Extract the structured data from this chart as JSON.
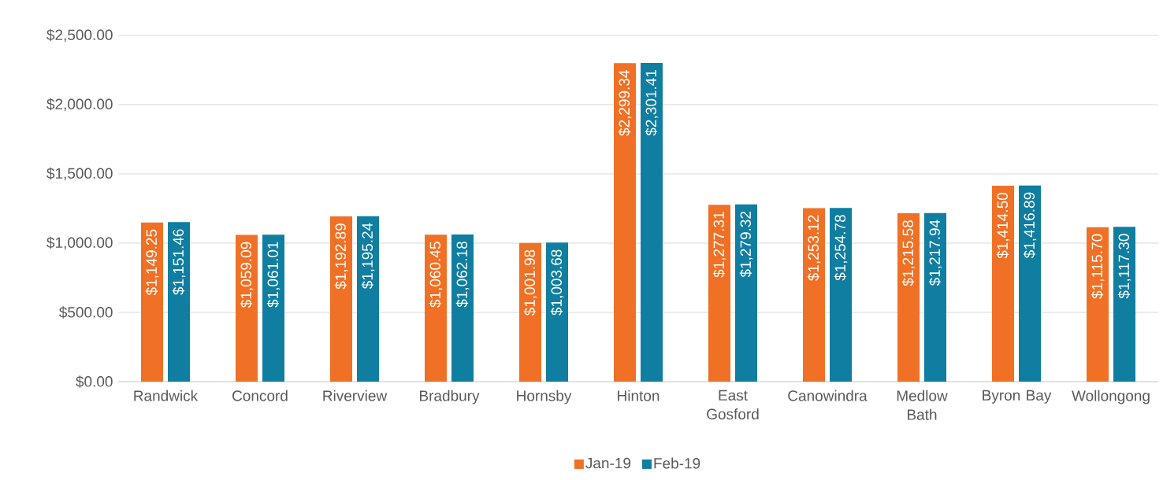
{
  "chart_data": {
    "type": "bar",
    "categories": [
      "Randwick",
      "Concord",
      "Riverview",
      "Bradbury",
      "Hornsby",
      "Hinton",
      "East Gosford",
      "Canowindra",
      "Medlow Bath",
      "Byron Bay",
      "Wollongong"
    ],
    "series": [
      {
        "name": "Jan-19",
        "color": "#f07125",
        "values": [
          1149.25,
          1059.09,
          1192.89,
          1060.45,
          1001.98,
          2299.34,
          1277.31,
          1253.12,
          1215.58,
          1414.5,
          1115.7
        ],
        "value_labels": [
          "$1,149.25",
          "$1,059.09",
          "$1,192.89",
          "$1,060.45",
          "$1,001.98",
          "$2,299.34",
          "$1,277.31",
          "$1,253.12",
          "$1,215.58",
          "$1,414.50",
          "$1,115.70"
        ]
      },
      {
        "name": "Feb-19",
        "color": "#0f7ea0",
        "values": [
          1151.46,
          1061.01,
          1195.24,
          1062.18,
          1003.68,
          2301.41,
          1279.32,
          1254.78,
          1217.94,
          1416.89,
          1117.3
        ],
        "value_labels": [
          "$1,151.46",
          "$1,061.01",
          "$1,195.24",
          "$1,062.18",
          "$1,003.68",
          "$2,301.41",
          "$1,279.32",
          "$1,254.78",
          "$1,217.94",
          "$1,416.89",
          "$1,117.30"
        ]
      }
    ],
    "ylim": [
      0,
      2500
    ],
    "yticks": [
      {
        "value": 0,
        "label": "$0.00"
      },
      {
        "value": 500,
        "label": "$500.00"
      },
      {
        "value": 1000,
        "label": "$1,000.00"
      },
      {
        "value": 1500,
        "label": "$1,500.00"
      },
      {
        "value": 2000,
        "label": "$2,000.00"
      },
      {
        "value": 2500,
        "label": "$2,500.00"
      }
    ],
    "grid": "y",
    "legend": "bottom"
  }
}
